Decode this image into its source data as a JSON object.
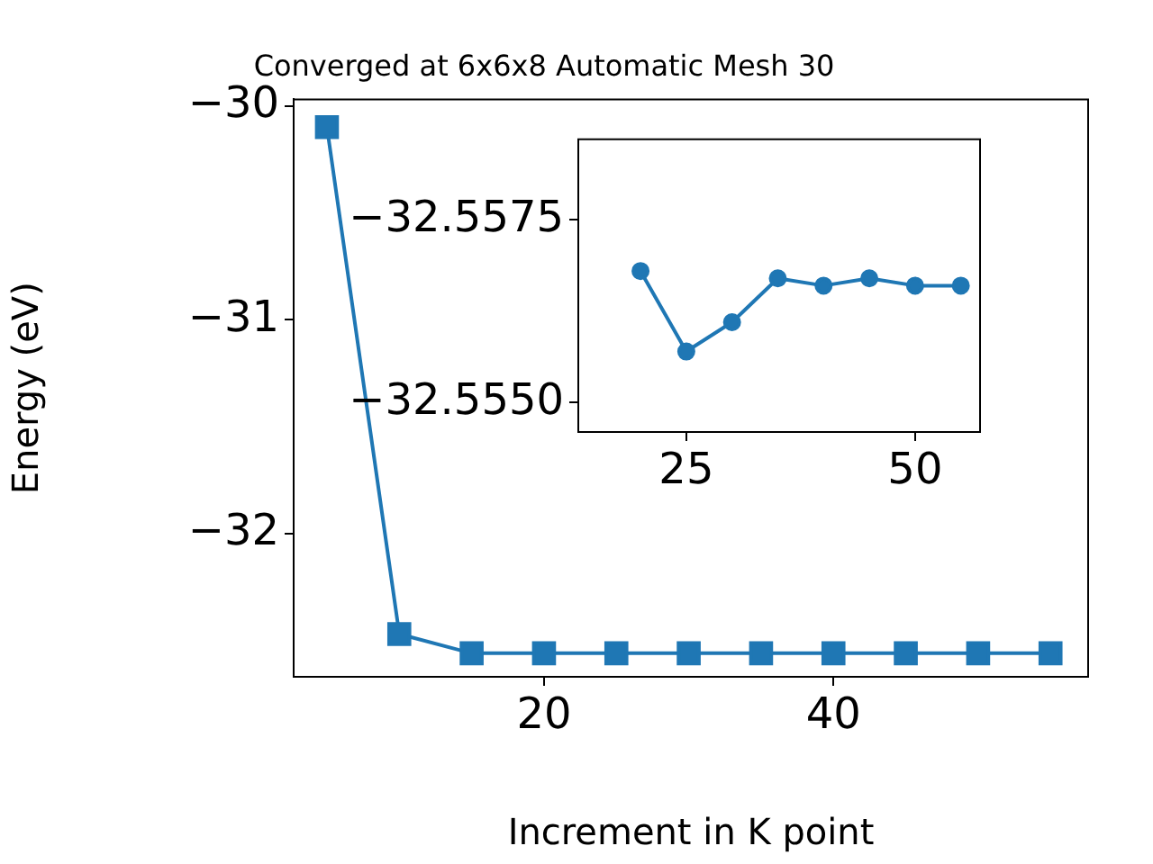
{
  "chart_data": [
    {
      "type": "line",
      "title": "Converged at 6x6x8 Automatic Mesh 30",
      "xlabel": "Increment in K point",
      "ylabel": "Energy (eV)",
      "x": [
        5,
        10,
        15,
        20,
        25,
        30,
        35,
        40,
        45,
        50,
        55
      ],
      "series": [
        {
          "color": "#1f77b4",
          "values": [
            -30.1,
            -32.47,
            -32.56,
            -32.56,
            -32.56,
            -32.56,
            -32.56,
            -32.56,
            -32.56,
            -32.56,
            -32.56
          ]
        }
      ],
      "xlim": [
        2.7,
        57.6
      ],
      "ylim": [
        -32.67,
        -29.97
      ],
      "xticks": [
        20,
        40
      ],
      "yticks": [
        -30,
        -31,
        -32
      ],
      "grid": false,
      "legend": false,
      "marker": "square",
      "line_style": "solid"
    },
    {
      "type": "line",
      "x": [
        20,
        25,
        30,
        35,
        40,
        45,
        50,
        55
      ],
      "series": [
        {
          "color": "#1f77b4",
          "values": [
            -32.5568,
            -32.5557,
            -32.5561,
            -32.5567,
            -32.5566,
            -32.5567,
            -32.5566,
            -32.5566
          ]
        }
      ],
      "xlim": [
        13.2,
        57.1
      ],
      "ylim": [
        -32.5546,
        -32.5586
      ],
      "xticks": [
        25,
        50
      ],
      "yticks": [
        {
          "value": -32.5575,
          "label": "−32.5575"
        },
        {
          "value": -32.555,
          "label": "−32.5550"
        }
      ],
      "grid": false,
      "legend": false,
      "marker": "circle",
      "line_style": "solid"
    }
  ]
}
